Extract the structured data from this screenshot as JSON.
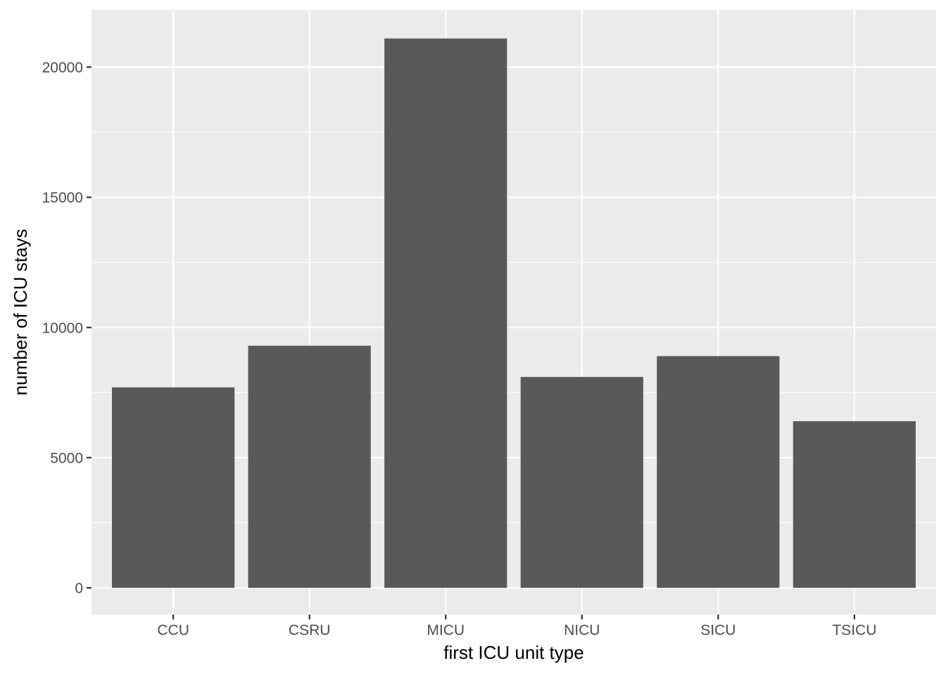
{
  "chart_data": {
    "type": "bar",
    "title": "",
    "xlabel": "first ICU unit type",
    "ylabel": "number of ICU stays",
    "categories": [
      "CCU",
      "CSRU",
      "MICU",
      "NICU",
      "SICU",
      "TSICU"
    ],
    "values": [
      7700,
      9300,
      21100,
      8100,
      8900,
      6400
    ],
    "ylim": [
      -1025,
      22200
    ],
    "yticks": [
      0,
      5000,
      10000,
      15000,
      20000
    ],
    "ytick_labels": [
      "0",
      "5000",
      "10000",
      "15000",
      "20000"
    ],
    "grid": true,
    "legend": "none",
    "colors": {
      "panel_background": "#EBEBEB",
      "grid": "#FFFFFF",
      "bar_fill": "#595959",
      "tick": "#333333",
      "tick_label": "#4D4D4D",
      "axis_title": "#000000"
    }
  }
}
